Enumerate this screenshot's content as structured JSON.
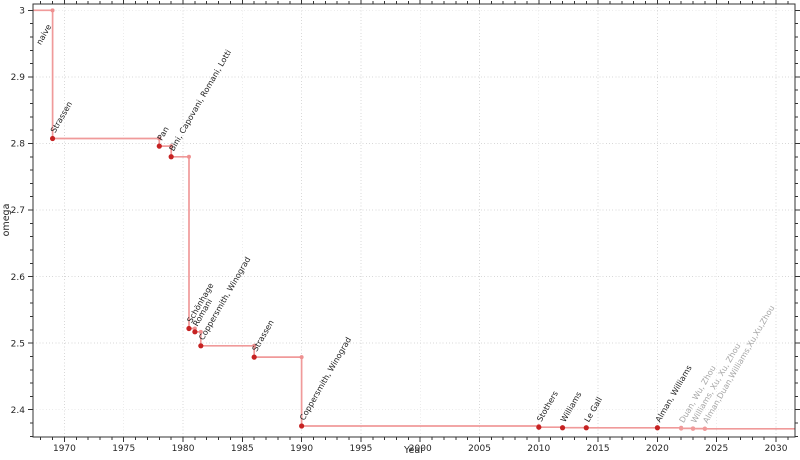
{
  "figure": {
    "description": "Step chart of the matrix multiplication exponent omega over time"
  },
  "chart_data": {
    "type": "line",
    "step": "post",
    "title": "",
    "xlabel": "Year",
    "ylabel": "omega",
    "xlim": [
      1967.35,
      2031.6
    ],
    "ylim": [
      2.359,
      3.0095
    ],
    "x_major_ticks": [
      1970,
      1975,
      1980,
      1985,
      1990,
      1995,
      2000,
      2005,
      2010,
      2015,
      2020,
      2025,
      2030
    ],
    "x_minor_step": 1,
    "y_major_ticks": [
      2.4,
      2.5,
      2.6,
      2.7,
      2.8,
      2.9,
      3
    ],
    "y_minor_step": 0.02,
    "grid": {
      "show": true,
      "style": "dotted",
      "which": "major"
    },
    "legend": null,
    "series_start": {
      "omega": 3,
      "label": "naive",
      "label_year": 1968,
      "label_dy": 35
    },
    "points": [
      {
        "year": 1969,
        "omega": 2.8074,
        "label": "Strassen",
        "provisional": false
      },
      {
        "year": 1978,
        "omega": 2.796,
        "label": "Pan",
        "provisional": false
      },
      {
        "year": 1979,
        "omega": 2.78,
        "label": "Bini, Capovani, Romani, Lotti",
        "provisional": false
      },
      {
        "year": 1980.5,
        "omega": 2.522,
        "label": "Schönhage",
        "provisional": false
      },
      {
        "year": 1981,
        "omega": 2.517,
        "label": "Romani",
        "provisional": false
      },
      {
        "year": 1981.5,
        "omega": 2.496,
        "label": "Coppersmith, Winograd",
        "provisional": false
      },
      {
        "year": 1986,
        "omega": 2.479,
        "label": "Strassen",
        "provisional": false
      },
      {
        "year": 1990,
        "omega": 2.3755,
        "label": "Coppersmith, Winograd",
        "provisional": false
      },
      {
        "year": 2010,
        "omega": 2.3737,
        "label": "Stothers",
        "provisional": false
      },
      {
        "year": 2012,
        "omega": 2.3729,
        "label": "Williams",
        "provisional": false
      },
      {
        "year": 2014,
        "omega": 2.3728639,
        "label": "Le Gall",
        "provisional": false
      },
      {
        "year": 2020,
        "omega": 2.3728596,
        "label": "Alman, Williams",
        "provisional": false
      },
      {
        "year": 2022,
        "omega": 2.371866,
        "label": "Duan, Wu, Zhou",
        "provisional": true
      },
      {
        "year": 2023,
        "omega": 2.371552,
        "label": "Williams, Xu, Xu, Zhou",
        "provisional": true
      },
      {
        "year": 2024,
        "omega": 2.371339,
        "label": "Alman,Duan,Williams,Xu,Xu,Zhou",
        "provisional": true
      }
    ],
    "colors": {
      "step_line": "#f09a9a",
      "corner_marker": "#ee9090",
      "point_marker": "#c62222",
      "provisional_marker": "#f09a9a",
      "label": "#1f1f1f",
      "provisional_label": "#a6a6a6",
      "grid": "#d8d8d8",
      "spine": "#333333",
      "tick": "#333333",
      "tick_label": "#262626"
    }
  }
}
